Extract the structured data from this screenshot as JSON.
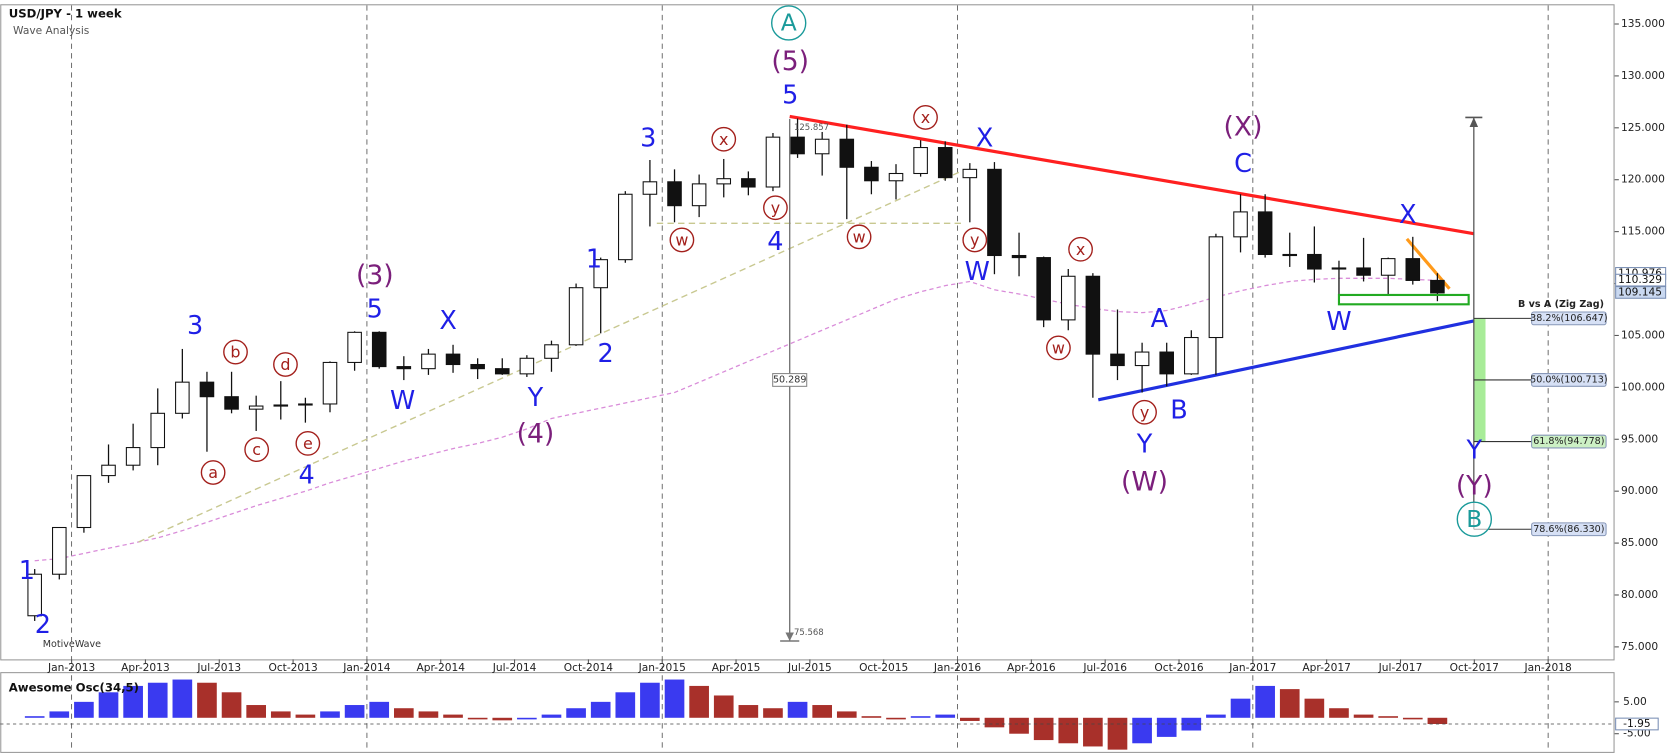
{
  "chart_data": [
    {
      "type": "candlestick",
      "title": "USD/JPY - 1 week",
      "subtitle": "Wave Analysis",
      "watermark": "MotiveWave",
      "x": [
        "Nov-2012",
        "Dec-2012",
        "Jan-2013",
        "Feb-2013",
        "Mar-2013",
        "Apr-2013",
        "May-2013",
        "Jun-2013",
        "Jul-2013",
        "Aug-2013",
        "Sep-2013",
        "Oct-2013",
        "Nov-2013",
        "Dec-2013",
        "Jan-2014",
        "Feb-2014",
        "Mar-2014",
        "Apr-2014",
        "May-2014",
        "Jun-2014",
        "Jul-2014",
        "Aug-2014",
        "Sep-2014",
        "Oct-2014",
        "Nov-2014",
        "Dec-2014",
        "Jan-2015",
        "Feb-2015",
        "Mar-2015",
        "Apr-2015",
        "May-2015",
        "Jun-2015",
        "Jul-2015",
        "Aug-2015",
        "Sep-2015",
        "Oct-2015",
        "Nov-2015",
        "Dec-2015",
        "Jan-2016",
        "Feb-2016",
        "Mar-2016",
        "Apr-2016",
        "May-2016",
        "Jun-2016",
        "Jul-2016",
        "Aug-2016",
        "Sep-2016",
        "Oct-2016",
        "Nov-2016",
        "Dec-2016",
        "Jan-2017",
        "Feb-2017",
        "Mar-2017",
        "Apr-2017",
        "May-2017",
        "Jun-2017",
        "Jul-2017",
        "Aug-2017"
      ],
      "open": [
        78.0,
        82.0,
        86.5,
        91.5,
        92.5,
        94.2,
        97.5,
        100.5,
        99.1,
        97.9,
        98.2,
        98.3,
        98.4,
        102.4,
        105.3,
        102.0,
        101.8,
        103.2,
        102.2,
        101.8,
        101.3,
        102.8,
        104.1,
        109.6,
        112.3,
        118.6,
        119.8,
        117.5,
        119.6,
        120.1,
        119.3,
        124.1,
        122.5,
        123.9,
        121.2,
        119.9,
        120.6,
        123.1,
        120.2,
        121.0,
        112.7,
        112.5,
        106.5,
        110.7,
        103.2,
        102.1,
        103.4,
        101.3,
        104.8,
        114.5,
        116.9,
        112.8,
        112.8,
        111.4,
        111.5,
        110.8,
        112.4,
        110.3
      ],
      "high": [
        82.5,
        86.5,
        91.5,
        94.5,
        96.5,
        99.9,
        103.7,
        101.5,
        101.5,
        99.2,
        100.6,
        99.0,
        102.5,
        105.4,
        105.4,
        103.0,
        103.7,
        104.1,
        102.8,
        102.8,
        103.1,
        104.5,
        110.0,
        112.5,
        118.9,
        121.9,
        121.0,
        120.5,
        122.0,
        120.8,
        124.5,
        125.9,
        124.6,
        125.3,
        121.8,
        121.5,
        123.8,
        123.7,
        121.6,
        121.7,
        114.9,
        112.6,
        111.4,
        111.0,
        107.5,
        104.3,
        104.3,
        105.5,
        114.8,
        118.6,
        118.6,
        114.9,
        115.5,
        112.2,
        114.4,
        112.5,
        114.5,
        111.0
      ],
      "low": [
        77.5,
        81.5,
        86.0,
        90.8,
        92.0,
        92.5,
        97.0,
        93.8,
        97.5,
        95.8,
        96.9,
        96.6,
        97.6,
        101.6,
        101.8,
        100.7,
        101.2,
        101.4,
        100.8,
        101.2,
        101.0,
        101.5,
        104.0,
        105.2,
        112.0,
        115.5,
        115.9,
        116.4,
        118.3,
        118.5,
        118.9,
        122.1,
        120.4,
        116.2,
        118.6,
        118.1,
        120.3,
        119.9,
        115.9,
        110.9,
        110.7,
        105.8,
        105.5,
        99.0,
        100.7,
        99.5,
        100.1,
        101.2,
        101.2,
        113.0,
        112.5,
        111.6,
        110.1,
        108.1,
        110.2,
        108.8,
        109.9,
        108.3
      ],
      "close": [
        82.0,
        86.5,
        91.5,
        92.5,
        94.2,
        97.5,
        100.5,
        99.1,
        97.9,
        98.2,
        98.3,
        98.4,
        102.4,
        105.3,
        102.0,
        101.8,
        103.2,
        102.2,
        101.8,
        101.3,
        102.8,
        104.1,
        109.6,
        112.3,
        118.6,
        119.8,
        117.5,
        119.6,
        120.1,
        119.3,
        124.1,
        122.5,
        123.9,
        121.2,
        119.9,
        120.6,
        123.1,
        120.2,
        121.0,
        112.7,
        112.5,
        106.5,
        110.7,
        103.2,
        102.1,
        103.4,
        101.3,
        104.8,
        114.5,
        116.9,
        112.8,
        112.8,
        111.4,
        111.5,
        110.8,
        112.4,
        110.3,
        109.1
      ],
      "up_color": "#ffffff",
      "down_color": "#111111",
      "xlim": [
        -0.9,
        64.7
      ],
      "xticks": [
        {
          "value": 2,
          "label": "Jan-2013"
        },
        {
          "value": 5,
          "label": "Apr-2013"
        },
        {
          "value": 8,
          "label": "Jul-2013"
        },
        {
          "value": 11,
          "label": "Oct-2013"
        },
        {
          "value": 14,
          "label": "Jan-2014"
        },
        {
          "value": 17,
          "label": "Apr-2014"
        },
        {
          "value": 20,
          "label": "Jul-2014"
        },
        {
          "value": 23,
          "label": "Oct-2014"
        },
        {
          "value": 26,
          "label": "Jan-2015"
        },
        {
          "value": 29,
          "label": "Apr-2015"
        },
        {
          "value": 32,
          "label": "Jul-2015"
        },
        {
          "value": 35,
          "label": "Oct-2015"
        },
        {
          "value": 38,
          "label": "Jan-2016"
        },
        {
          "value": 41,
          "label": "Apr-2016"
        },
        {
          "value": 44,
          "label": "Jul-2016"
        },
        {
          "value": 47,
          "label": "Oct-2016"
        },
        {
          "value": 50,
          "label": "Jan-2017"
        },
        {
          "value": 53,
          "label": "Apr-2017"
        },
        {
          "value": 56,
          "label": "Jul-2017"
        },
        {
          "value": 59,
          "label": "Oct-2017"
        },
        {
          "value": 62,
          "label": "Jan-2018"
        }
      ],
      "grid": true,
      "grid_step": 4,
      "ylim": [
        73.8,
        136.8
      ],
      "yticks": [
        {
          "value": 75,
          "label": "75.000"
        },
        {
          "value": 80,
          "label": "80.000"
        },
        {
          "value": 85,
          "label": "85.000"
        },
        {
          "value": 90,
          "label": "90.000"
        },
        {
          "value": 95,
          "label": "95.000"
        },
        {
          "value": 100,
          "label": "100.000"
        },
        {
          "value": 105,
          "label": "105.000"
        },
        {
          "value": 110,
          "label": "110.000"
        },
        {
          "value": 115,
          "label": "115.000"
        },
        {
          "value": 120,
          "label": "120.000"
        },
        {
          "value": 125,
          "label": "125.000"
        },
        {
          "value": 130,
          "label": "130.000"
        },
        {
          "value": 135,
          "label": "135.000"
        }
      ],
      "moving_average": {
        "color": "#d98cd9",
        "values": [
          83.3,
          83.5,
          84,
          84.5,
          85,
          85.5,
          86.2,
          87,
          87.8,
          88.6,
          89.3,
          90,
          90.8,
          91.5,
          92.2,
          92.9,
          93.5,
          94.1,
          94.6,
          95.2,
          96,
          97,
          97.5,
          98,
          98.5,
          99,
          99.5,
          100.5,
          101.5,
          102.5,
          103.5,
          104.5,
          105.5,
          106.5,
          107.5,
          108.5,
          109.2,
          109.8,
          110.2,
          109.4,
          109,
          108.5,
          108,
          107.6,
          107.3,
          107.2,
          107.4,
          108,
          108.7,
          109.3,
          109.8,
          110.2,
          110.4,
          110.5,
          110.5,
          110.5,
          110.4,
          110.3
        ]
      },
      "price_tags": [
        {
          "value": 110.976,
          "label": "110.976",
          "fill": "#ffffff"
        },
        {
          "value": 110.329,
          "label": "110.329",
          "fill": "#ffffff"
        },
        {
          "value": 109.145,
          "label": "109.145",
          "fill": "#c9d8f0"
        }
      ],
      "trendlines": [
        {
          "color": "#ff2020",
          "dash": false,
          "x": [
            31.18,
            58.98
          ],
          "y": [
            126.1,
            114.8
          ]
        },
        {
          "color": "#2030e0",
          "dash": false,
          "x": [
            43.72,
            58.98
          ],
          "y": [
            98.8,
            106.4
          ]
        },
        {
          "color": "#ff9a1a",
          "dash": false,
          "x": [
            56.26,
            57.99
          ],
          "y": [
            114.3,
            109.5
          ]
        },
        {
          "color": "#c8c890",
          "dash": true,
          "x": [
            4.72,
            38.23
          ],
          "y": [
            85.1,
            120.9
          ]
        },
        {
          "color": "#c8c890",
          "dash": true,
          "x": [
            25.78,
            38.23
          ],
          "y": [
            115.8,
            115.8
          ]
        }
      ],
      "boxes": [
        {
          "color": "#22aa22",
          "x": [
            53.5,
            58.77
          ],
          "y": [
            108.9,
            108.0
          ]
        }
      ],
      "measure": {
        "x": 31.18,
        "y": [
          125.857,
          75.568
        ],
        "labels": [
          "125.857",
          "75.568"
        ],
        "span_label": "50.289"
      },
      "fibonacci": {
        "title": "B vs A (Zig Zag)",
        "x": 58.98,
        "from": 126.0,
        "zone_color": "#a8ec98",
        "levels": [
          {
            "value": 106.647,
            "label": "38.2%(106.647)",
            "fill": "#d6e0f5"
          },
          {
            "value": 100.713,
            "label": "50.0%(100.713)",
            "fill": "#d6e0f5"
          },
          {
            "value": 94.778,
            "label": "61.8%(94.778)",
            "fill": "#ccf0c4"
          },
          {
            "value": 86.33,
            "label": "78.6%(86.330)",
            "fill": "#d6e0f5"
          }
        ]
      },
      "annotation_colors": {
        "blue": "#1f1fe6",
        "purple": "#7b1f7b",
        "circle-red": "#a3201c",
        "circle-teal": "#1a9a9a"
      },
      "annotations": [
        {
          "text": "1",
          "x": 0.18,
          "y": 82.3,
          "style": "blue"
        },
        {
          "text": "2",
          "x": 0.83,
          "y": 77.1,
          "style": "blue"
        },
        {
          "text": "3",
          "x": 7.02,
          "y": 105.9,
          "style": "blue"
        },
        {
          "text": "a",
          "x": 7.75,
          "y": 91.8,
          "style": "circle-red"
        },
        {
          "text": "b",
          "x": 8.66,
          "y": 103.4,
          "style": "circle-red"
        },
        {
          "text": "c",
          "x": 9.52,
          "y": 94.0,
          "style": "circle-red"
        },
        {
          "text": "d",
          "x": 10.69,
          "y": 102.2,
          "style": "circle-red"
        },
        {
          "text": "e",
          "x": 11.6,
          "y": 94.6,
          "style": "circle-red"
        },
        {
          "text": "4",
          "x": 11.55,
          "y": 91.5,
          "style": "blue"
        },
        {
          "text": "(3)",
          "x": 14.32,
          "y": 110.8,
          "style": "purple"
        },
        {
          "text": "5",
          "x": 14.32,
          "y": 107.5,
          "style": "blue"
        },
        {
          "text": "W",
          "x": 15.45,
          "y": 98.7,
          "style": "blue"
        },
        {
          "text": "X",
          "x": 17.3,
          "y": 106.4,
          "style": "blue"
        },
        {
          "text": "Y",
          "x": 20.85,
          "y": 99.0,
          "style": "blue"
        },
        {
          "text": "(4)",
          "x": 20.85,
          "y": 95.5,
          "style": "purple"
        },
        {
          "text": "1",
          "x": 23.23,
          "y": 112.3,
          "style": "blue"
        },
        {
          "text": "2",
          "x": 23.7,
          "y": 103.2,
          "style": "blue"
        },
        {
          "text": "3",
          "x": 25.43,
          "y": 124.0,
          "style": "blue"
        },
        {
          "text": "w",
          "x": 26.8,
          "y": 114.2,
          "style": "circle-red"
        },
        {
          "text": "4",
          "x": 30.6,
          "y": 114.0,
          "style": "blue"
        },
        {
          "text": "x",
          "x": 28.5,
          "y": 123.9,
          "style": "circle-red"
        },
        {
          "text": "y",
          "x": 30.6,
          "y": 117.3,
          "style": "circle-red"
        },
        {
          "text": "5",
          "x": 31.2,
          "y": 128.1,
          "style": "blue"
        },
        {
          "text": "(5)",
          "x": 31.2,
          "y": 131.4,
          "style": "purple"
        },
        {
          "text": "A",
          "x": 31.14,
          "y": 135.1,
          "style": "circle-teal"
        },
        {
          "text": "w",
          "x": 34.0,
          "y": 114.5,
          "style": "circle-red"
        },
        {
          "text": "x",
          "x": 36.7,
          "y": 126.0,
          "style": "circle-red"
        },
        {
          "text": "X",
          "x": 39.1,
          "y": 124.0,
          "style": "blue"
        },
        {
          "text": "y",
          "x": 38.7,
          "y": 114.2,
          "style": "circle-red"
        },
        {
          "text": "W",
          "x": 38.8,
          "y": 111.1,
          "style": "blue"
        },
        {
          "text": "x",
          "x": 43.0,
          "y": 113.3,
          "style": "circle-red"
        },
        {
          "text": "w",
          "x": 42.1,
          "y": 103.8,
          "style": "circle-red"
        },
        {
          "text": "A",
          "x": 46.2,
          "y": 106.6,
          "style": "blue"
        },
        {
          "text": "y",
          "x": 45.6,
          "y": 97.6,
          "style": "circle-red"
        },
        {
          "text": "Y",
          "x": 45.6,
          "y": 94.5,
          "style": "blue"
        },
        {
          "text": "(W)",
          "x": 45.6,
          "y": 90.9,
          "style": "purple"
        },
        {
          "text": "B",
          "x": 47.0,
          "y": 97.8,
          "style": "blue"
        },
        {
          "text": "(X)",
          "x": 49.6,
          "y": 125.1,
          "style": "purple"
        },
        {
          "text": "C",
          "x": 49.6,
          "y": 121.5,
          "style": "blue"
        },
        {
          "text": "X",
          "x": 56.3,
          "y": 116.6,
          "style": "blue"
        },
        {
          "text": "W",
          "x": 53.5,
          "y": 106.3,
          "style": "blue"
        },
        {
          "text": "Y",
          "x": 59.0,
          "y": 93.9,
          "style": "blue"
        },
        {
          "text": "(Y)",
          "x": 59.0,
          "y": 90.5,
          "style": "purple"
        },
        {
          "text": "B",
          "x": 59.0,
          "y": 87.3,
          "style": "circle-teal"
        }
      ]
    },
    {
      "type": "bar",
      "title": "Awesome Osc(34,5)",
      "values": [
        0.5,
        2,
        5,
        8,
        10,
        11,
        12,
        11,
        8,
        4,
        2,
        1,
        2,
        4,
        5,
        3,
        2,
        1,
        -0.5,
        -0.8,
        -0.5,
        1,
        3,
        5,
        8,
        11,
        12,
        10,
        7,
        4,
        3,
        5,
        4,
        2,
        0.5,
        -0.5,
        0.5,
        1,
        -1,
        -3,
        -5,
        -7,
        -8,
        -9,
        -10,
        -8,
        -6,
        -4,
        1,
        6,
        10,
        9,
        6,
        3,
        1,
        0.5,
        -0.5,
        -1.95
      ],
      "up_color": "#3a3af0",
      "down_color": "#a8302a",
      "xlim": [
        -0.9,
        64.7
      ],
      "ylim": [
        -10.7,
        14
      ],
      "yticks": [
        {
          "value": 5,
          "label": "5.00"
        },
        {
          "value": -5,
          "label": "-5.00"
        }
      ],
      "last_label": {
        "value": -1.95,
        "label": "-1.95"
      }
    }
  ]
}
